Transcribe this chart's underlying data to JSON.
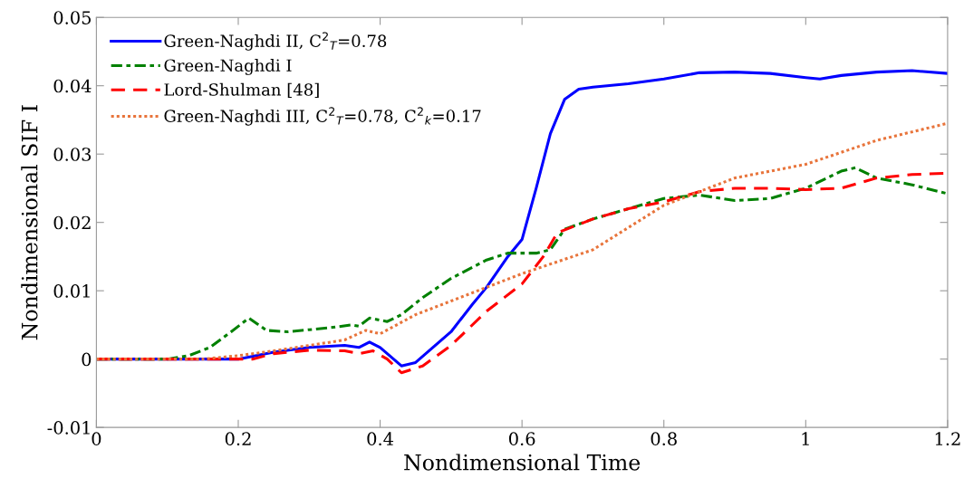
{
  "chart_data": {
    "type": "line",
    "xlabel": "Nondimensional Time",
    "ylabel": "Nondimensional SIF I",
    "xlim": [
      0,
      1.2
    ],
    "ylim": [
      -0.01,
      0.05
    ],
    "xticks": [
      0,
      0.2,
      0.4,
      0.6,
      0.8,
      1,
      1.2
    ],
    "yticks": [
      -0.01,
      0,
      0.01,
      0.02,
      0.03,
      0.04,
      0.05
    ],
    "grid": false,
    "legend": "top left",
    "series": [
      {
        "name": "Green-Naghdi II, C$^{2}$$_{T}$=0.78",
        "color": "#0000ff",
        "line_style": "solid",
        "x": [
          0,
          0.1,
          0.2,
          0.25,
          0.3,
          0.35,
          0.37,
          0.385,
          0.4,
          0.43,
          0.45,
          0.5,
          0.53,
          0.55,
          0.58,
          0.6,
          0.62,
          0.64,
          0.66,
          0.68,
          0.7,
          0.75,
          0.8,
          0.85,
          0.9,
          0.95,
          1.0,
          1.02,
          1.05,
          1.1,
          1.15,
          1.2
        ],
        "values": [
          0,
          0,
          0,
          0.001,
          0.0017,
          0.002,
          0.0017,
          0.0025,
          0.0017,
          -0.001,
          -0.0005,
          0.004,
          0.008,
          0.0105,
          0.015,
          0.0175,
          0.025,
          0.033,
          0.038,
          0.0395,
          0.0398,
          0.0403,
          0.041,
          0.0419,
          0.042,
          0.0418,
          0.0412,
          0.041,
          0.0415,
          0.042,
          0.0422,
          0.0418
        ]
      },
      {
        "name": "Green-Naghdi I",
        "color": "#008000",
        "line_style": "dashdot",
        "x": [
          0,
          0.1,
          0.13,
          0.16,
          0.19,
          0.215,
          0.24,
          0.27,
          0.3,
          0.33,
          0.36,
          0.37,
          0.385,
          0.41,
          0.43,
          0.46,
          0.5,
          0.55,
          0.58,
          0.62,
          0.64,
          0.66,
          0.7,
          0.75,
          0.8,
          0.85,
          0.9,
          0.95,
          1.0,
          1.05,
          1.07,
          1.1,
          1.15,
          1.2
        ],
        "values": [
          0,
          0,
          0.0005,
          0.0017,
          0.004,
          0.006,
          0.0042,
          0.004,
          0.0043,
          0.0046,
          0.005,
          0.0048,
          0.006,
          0.0055,
          0.0065,
          0.009,
          0.0118,
          0.0145,
          0.0155,
          0.0155,
          0.016,
          0.019,
          0.0205,
          0.022,
          0.0235,
          0.024,
          0.0232,
          0.0235,
          0.025,
          0.0275,
          0.028,
          0.0265,
          0.0255,
          0.0242
        ]
      },
      {
        "name": "Lord-Shulman [48]",
        "color": "#ff0000",
        "line_style": "dashed",
        "x": [
          0,
          0.1,
          0.22,
          0.25,
          0.3,
          0.35,
          0.37,
          0.39,
          0.41,
          0.43,
          0.46,
          0.5,
          0.55,
          0.6,
          0.63,
          0.65,
          0.7,
          0.75,
          0.8,
          0.85,
          0.9,
          0.95,
          1.0,
          1.05,
          1.1,
          1.15,
          1.2
        ],
        "values": [
          0,
          0,
          0,
          0.0008,
          0.0013,
          0.0012,
          0.0008,
          0.0012,
          0,
          -0.002,
          -0.001,
          0.002,
          0.007,
          0.011,
          0.015,
          0.0185,
          0.0205,
          0.022,
          0.023,
          0.0245,
          0.025,
          0.025,
          0.0248,
          0.025,
          0.0265,
          0.027,
          0.0272
        ]
      },
      {
        "name": "Green-Naghdi III, C$^{2}$$_{T}$=0.78, C$^{2}$$_{k}$=0.17",
        "color": "#e8743b",
        "line_style": "dotted",
        "x": [
          0,
          0.1,
          0.15,
          0.2,
          0.25,
          0.3,
          0.35,
          0.38,
          0.4,
          0.45,
          0.5,
          0.55,
          0.6,
          0.7,
          0.8,
          0.9,
          1.0,
          1.1,
          1.2
        ],
        "values": [
          0,
          0,
          0,
          0.0005,
          0.0012,
          0.002,
          0.0028,
          0.0042,
          0.0037,
          0.0065,
          0.0085,
          0.0105,
          0.0125,
          0.016,
          0.0225,
          0.0265,
          0.0285,
          0.032,
          0.0345
        ]
      }
    ]
  }
}
